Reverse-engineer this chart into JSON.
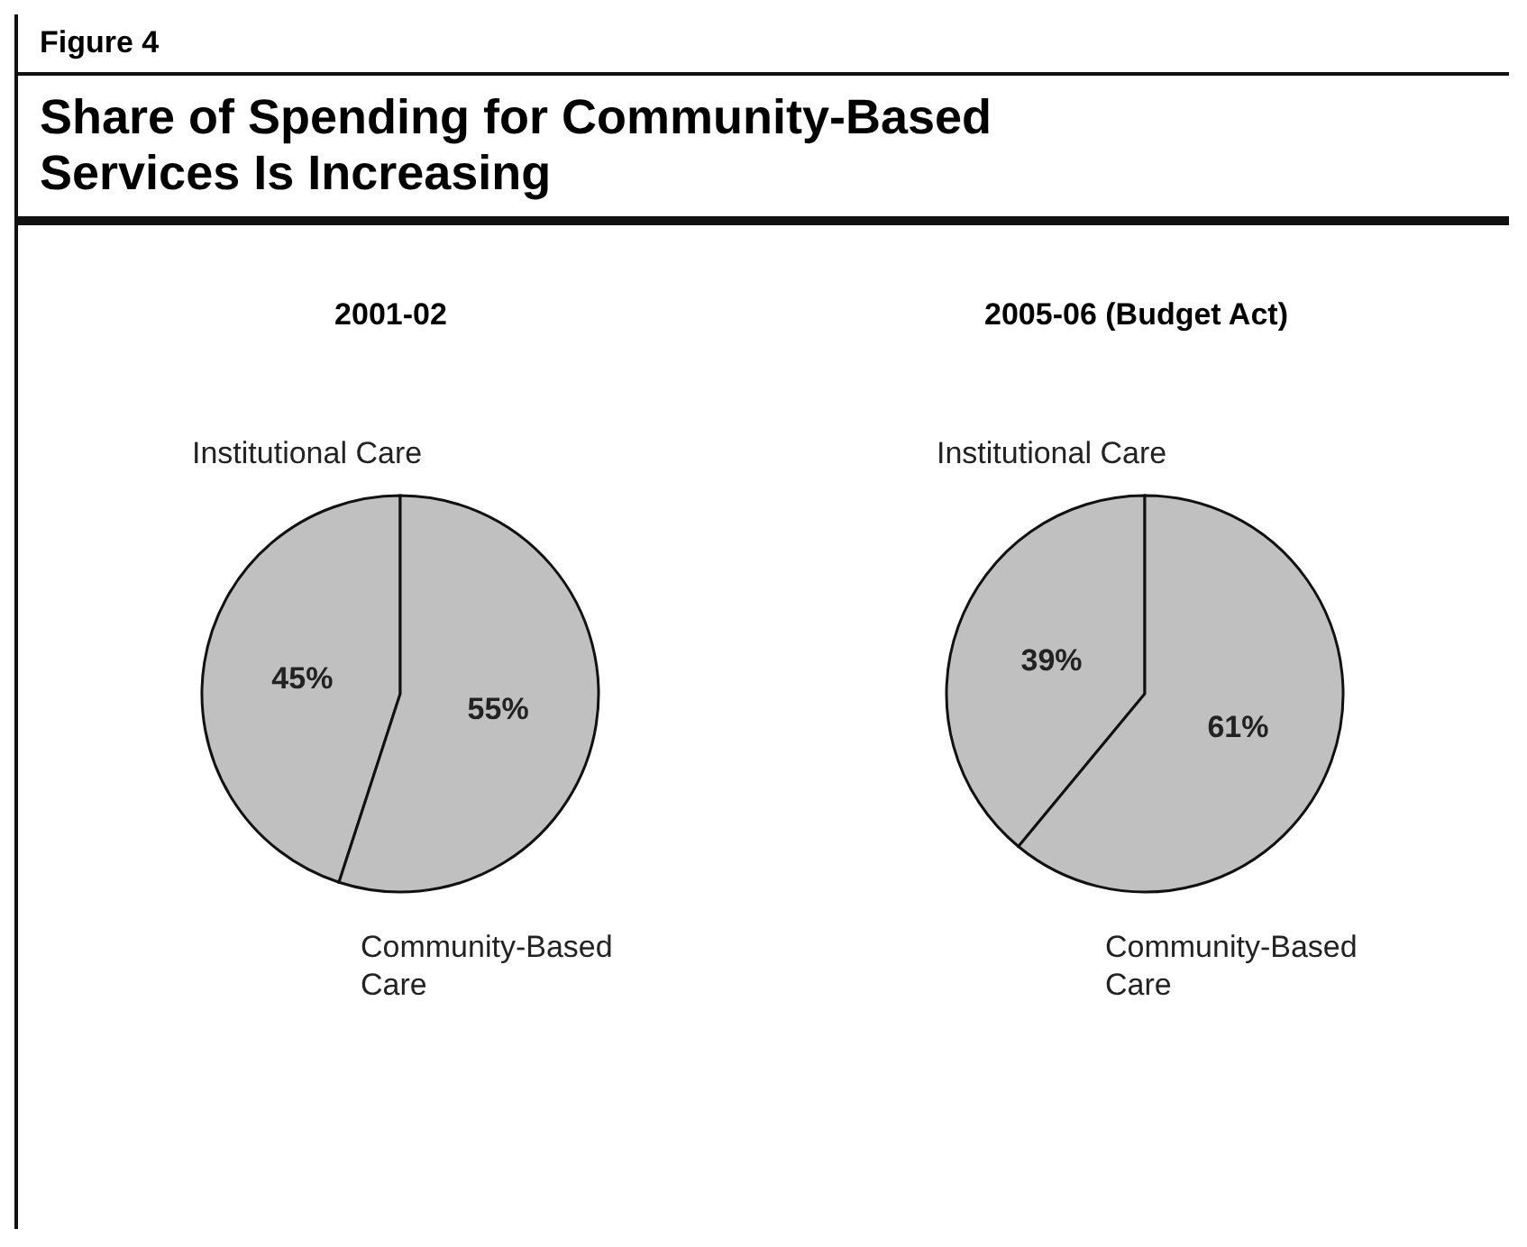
{
  "chart_data": [
    {
      "type": "pie",
      "annotations": [
        "Figure 4",
        "Share of Spending for Community-Based Services Is Increasing"
      ],
      "title": "2001-02",
      "categories": [
        "Institutional Care",
        "Community-Based Care"
      ],
      "values": [
        45,
        55
      ],
      "value_labels": [
        "45%",
        "55%"
      ],
      "colors": [
        "#c0c0c0",
        "#c0c0c0"
      ],
      "legend": false
    },
    {
      "type": "pie",
      "title": "2005-06 (Budget Act)",
      "categories": [
        "Institutional Care",
        "Community-Based Care"
      ],
      "values": [
        39,
        61
      ],
      "value_labels": [
        "39%",
        "61%"
      ],
      "colors": [
        "#c0c0c0",
        "#c0c0c0"
      ],
      "legend": false
    }
  ]
}
